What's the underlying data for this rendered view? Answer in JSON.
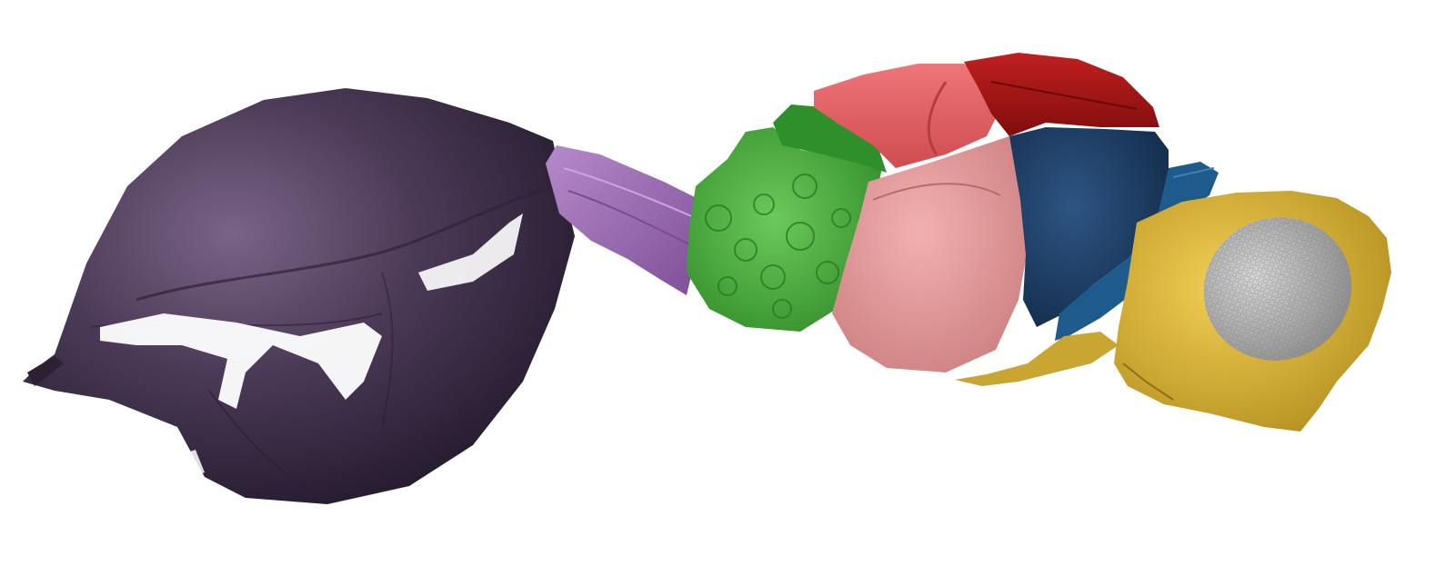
{
  "image": {
    "subject": "insect-body-3d-segmentation",
    "background": "#ffffff",
    "regions": [
      {
        "name": "abdomen",
        "color": "#3e2e4a"
      },
      {
        "name": "petiole",
        "color": "#9b6bb3"
      },
      {
        "name": "propodeum",
        "color": "#4cab3f"
      },
      {
        "name": "propodeum-dorsal",
        "color": "#2f8f2a"
      },
      {
        "name": "mesopleuron",
        "color": "#e79a9b"
      },
      {
        "name": "mesoscutum",
        "color": "#e05a5d"
      },
      {
        "name": "scutellum",
        "color": "#a81514"
      },
      {
        "name": "pronotum",
        "color": "#1d3f66"
      },
      {
        "name": "prothorax",
        "color": "#1f5a8c"
      },
      {
        "name": "head",
        "color": "#d6b136"
      },
      {
        "name": "compound-eye",
        "color": "#a9a9a9"
      }
    ]
  }
}
